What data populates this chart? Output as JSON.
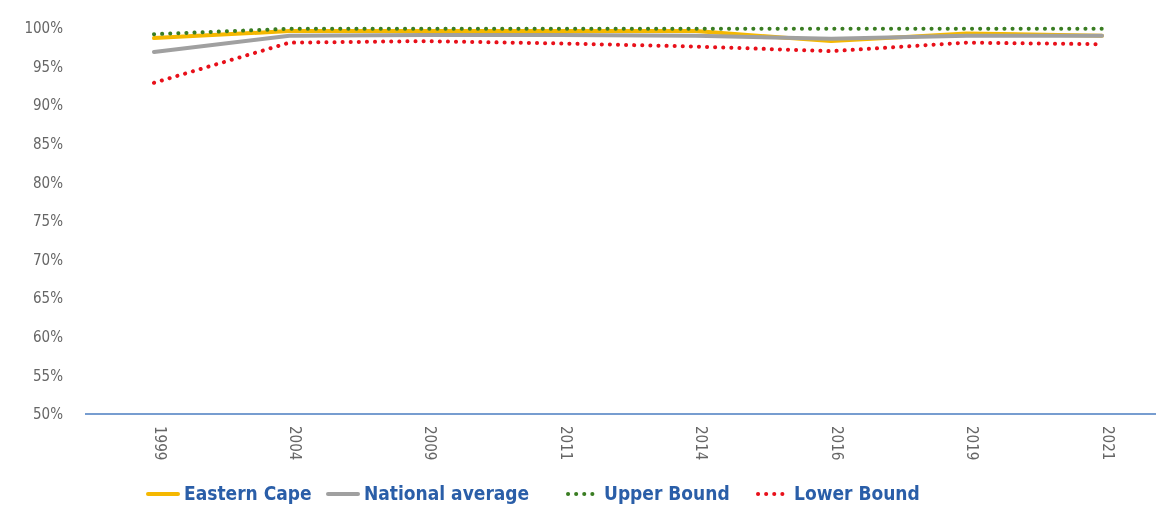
{
  "chart_data": {
    "type": "line",
    "categories": [
      "1999",
      "2004",
      "2009",
      "2011",
      "2014",
      "2016",
      "2019",
      "2021"
    ],
    "series": [
      {
        "name": "Eastern Cape",
        "color": "#f5b800",
        "line_style": "solid",
        "values": [
          98.7,
          99.6,
          99.6,
          99.6,
          99.6,
          98.3,
          99.3,
          99.0
        ]
      },
      {
        "name": "National average",
        "color": "#a0a0a0",
        "line_style": "solid",
        "values": [
          96.9,
          99.0,
          99.1,
          99.1,
          99.0,
          98.6,
          99.0,
          99.0
        ]
      },
      {
        "name": "Upper Bound",
        "color": "#3a7d22",
        "line_style": "dotted",
        "values": [
          99.2,
          99.9,
          99.9,
          99.9,
          99.9,
          99.9,
          99.9,
          99.9
        ]
      },
      {
        "name": "Lower Bound",
        "color": "#e8101a",
        "line_style": "dotted",
        "values": [
          92.9,
          98.1,
          98.3,
          98.0,
          97.6,
          97.0,
          98.1,
          97.9
        ]
      }
    ],
    "ylim": [
      50,
      100
    ],
    "yticks": [
      {
        "value": 50,
        "label": "50%"
      },
      {
        "value": 55,
        "label": "55%"
      },
      {
        "value": 60,
        "label": "60%"
      },
      {
        "value": 65,
        "label": "65%"
      },
      {
        "value": 70,
        "label": "70%"
      },
      {
        "value": 75,
        "label": "75%"
      },
      {
        "value": 80,
        "label": "80%"
      },
      {
        "value": 85,
        "label": "85%"
      },
      {
        "value": 90,
        "label": "90%"
      },
      {
        "value": 95,
        "label": "95%"
      },
      {
        "value": 100,
        "label": "100%"
      }
    ],
    "grid": false,
    "legend": "bottom"
  }
}
